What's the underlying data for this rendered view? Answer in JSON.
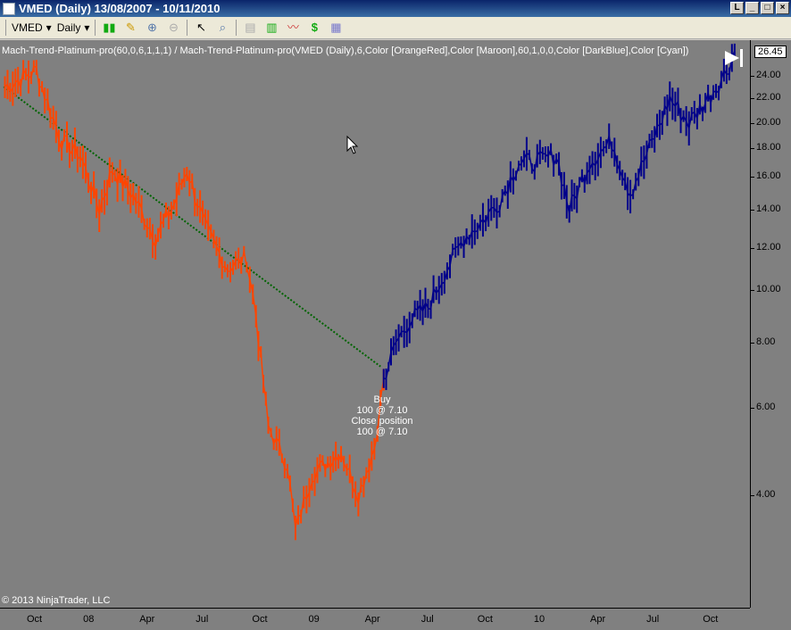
{
  "window": {
    "title": "VMED (Daily)  13/08/2007 - 10/11/2010",
    "buttons": [
      "L",
      "_",
      "□",
      "×"
    ]
  },
  "toolbar": {
    "instrument": "VMED",
    "interval": "Daily",
    "icons": [
      "candlestick-icon",
      "pencil-icon",
      "zoom-in-icon",
      "zoom-out-icon",
      "cursor-icon",
      "magnifier-icon",
      "data-box-icon",
      "bar-chart-icon",
      "indicators-icon",
      "strategy-icon",
      "properties-icon"
    ]
  },
  "chart": {
    "indicator_label": "Mach-Trend-Platinum-pro(60,0,6,1,1,1)  /  Mach-Trend-Platinum-pro(VMED  (Daily),6,Color  [OrangeRed],Color  [Maroon],60,1,0,0,Color  [DarkBlue],Color  [Cyan])",
    "last_price": "26.45",
    "copyright": "© 2013 NinjaTrader, LLC",
    "trade_annotation": [
      "Buy",
      "100 @ 7.10",
      "Close position",
      "100 @ 7.10"
    ],
    "colors": {
      "background": "#808080",
      "down_trend": "#ff4500",
      "up_trend": "#00008b",
      "trend_line": "#006400"
    }
  },
  "chart_data": {
    "type": "line",
    "y_scale": "log",
    "y_ticks": [
      "24.00",
      "22.00",
      "20.00",
      "18.00",
      "16.00",
      "14.00",
      "12.00",
      "10.00",
      "8.00",
      "6.00",
      "4.00"
    ],
    "x_ticks": [
      "Oct",
      "08",
      "Apr",
      "Jul",
      "Oct",
      "09",
      "Apr",
      "Jul",
      "Oct",
      "10",
      "Apr",
      "Jul",
      "Oct"
    ],
    "series": [
      {
        "color": "#ff4500",
        "points": [
          [
            "2007-08-15",
            23
          ],
          [
            "2007-10-05",
            24.5
          ],
          [
            "2007-11-15",
            18.5
          ],
          [
            "2007-12-15",
            17.5
          ],
          [
            "2008-01-15",
            14
          ],
          [
            "2008-02-05",
            16.5
          ],
          [
            "2008-03-10",
            14.8
          ],
          [
            "2008-04-15",
            12.5
          ],
          [
            "2008-05-15",
            14.3
          ],
          [
            "2008-06-05",
            16.5
          ],
          [
            "2008-07-05",
            13
          ],
          [
            "2008-08-10",
            11
          ],
          [
            "2008-09-10",
            11.5
          ],
          [
            "2008-09-25",
            9
          ],
          [
            "2008-10-15",
            5.5
          ],
          [
            "2008-11-15",
            4.6
          ],
          [
            "2008-11-28",
            3.4
          ],
          [
            "2008-12-25",
            4.4
          ],
          [
            "2009-02-10",
            4.9
          ],
          [
            "2009-03-10",
            4
          ],
          [
            "2009-04-05",
            5
          ],
          [
            "2009-04-20",
            6.8
          ]
        ]
      },
      {
        "color": "#00008b",
        "points": [
          [
            "2009-04-20",
            6.8
          ],
          [
            "2009-05-10",
            8
          ],
          [
            "2009-06-01",
            8.8
          ],
          [
            "2009-07-01",
            9.3
          ],
          [
            "2009-08-01",
            11
          ],
          [
            "2009-08-28",
            12.5
          ],
          [
            "2009-09-28",
            13.4
          ],
          [
            "2009-10-25",
            14.5
          ],
          [
            "2009-11-25",
            17
          ],
          [
            "2009-12-25",
            17
          ],
          [
            "2010-01-25",
            17.5
          ],
          [
            "2010-02-15",
            14
          ],
          [
            "2010-03-20",
            17
          ],
          [
            "2010-04-25",
            18.5
          ],
          [
            "2010-05-25",
            15
          ],
          [
            "2010-06-25",
            18
          ],
          [
            "2010-07-28",
            22
          ],
          [
            "2010-08-28",
            20
          ],
          [
            "2010-09-28",
            22
          ],
          [
            "2010-10-28",
            24.5
          ],
          [
            "2010-11-10",
            26.45
          ]
        ]
      }
    ],
    "trend_line": [
      [
        "2007-08-13",
        23
      ],
      [
        "2009-04-15",
        7.2
      ]
    ]
  }
}
